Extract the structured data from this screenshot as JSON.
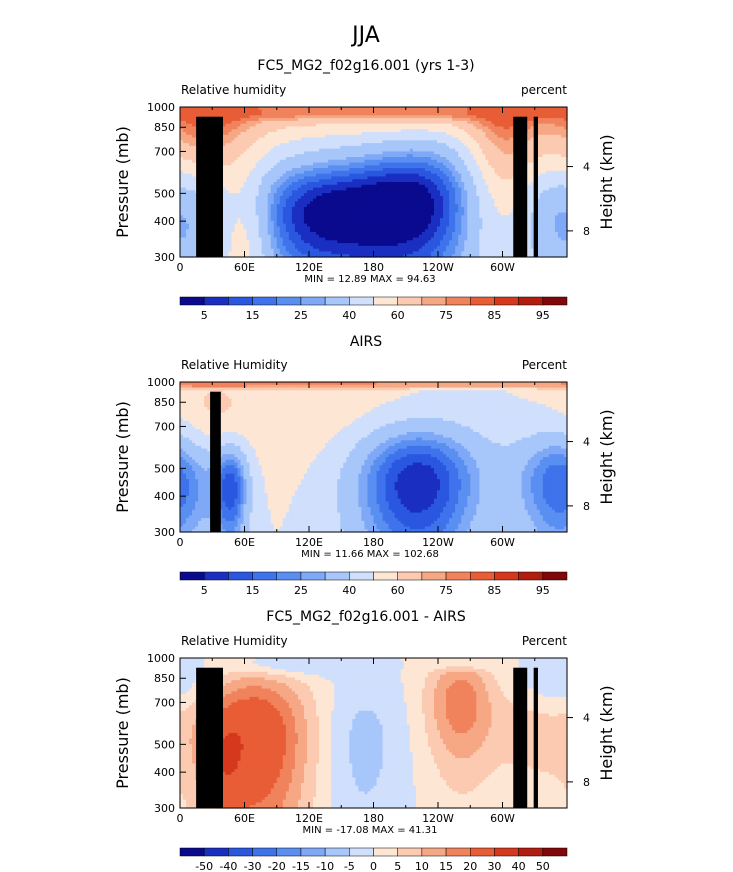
{
  "supertitle": "JJA",
  "chart_data": [
    {
      "type": "heatmap",
      "title": "FC5_MG2_f02g16.001 (yrs 1-3)",
      "left_label": "Relative humidity",
      "right_label": "percent",
      "ylabel": "Pressure (mb)",
      "ylabel_right": "Height (km)",
      "x_ticks": [
        "0",
        "60E",
        "120E",
        "180",
        "120W",
        "60W"
      ],
      "y_ticks": [
        "300",
        "400",
        "500",
        "700",
        "850",
        "1000"
      ],
      "y_right_ticks": [
        "8",
        "4"
      ],
      "ylim": [
        1000,
        300
      ],
      "min_max_label": "MIN =   12.89   MAX =   94.63",
      "min": 12.89,
      "max": 94.63,
      "colorbar_labels": [
        "5",
        "15",
        "25",
        "40",
        "60",
        "75",
        "85",
        "95"
      ],
      "levels": [
        0,
        5,
        10,
        15,
        20,
        25,
        30,
        40,
        50,
        60,
        70,
        75,
        80,
        85,
        90,
        95,
        100
      ],
      "blobs": [
        {
          "lon": 130,
          "p": 420,
          "sx": 55,
          "sp": 160,
          "v": -45
        },
        {
          "lon": 225,
          "p": 460,
          "sx": 45,
          "sp": 200,
          "v": -40
        },
        {
          "lon": 355,
          "p": 420,
          "sx": 35,
          "sp": 160,
          "v": -25
        },
        {
          "lon": 25,
          "p": 800,
          "sx": 35,
          "sp": 260,
          "v": 25
        },
        {
          "lon": 60,
          "p": 350,
          "sx": 18,
          "sp": 150,
          "v": 20
        },
        {
          "lon": 300,
          "p": 700,
          "sx": 25,
          "sp": 320,
          "v": 25
        },
        {
          "lon": 180,
          "p": 960,
          "sx": 200,
          "sp": 100,
          "v": 18
        }
      ],
      "base": 50,
      "surface": {
        "v": 85,
        "p0": 880,
        "sp": 60
      },
      "terrain": [
        [
          15,
          40,
          925
        ],
        [
          25,
          30,
          860
        ],
        [
          310,
          323,
          925
        ],
        [
          329,
          333,
          925
        ]
      ]
    },
    {
      "type": "heatmap",
      "title": "AIRS",
      "left_label": "Relative Humidity",
      "right_label": "Percent",
      "ylabel": "Pressure (mb)",
      "ylabel_right": "Height (km)",
      "x_ticks": [
        "0",
        "60E",
        "120E",
        "180",
        "120W",
        "60W"
      ],
      "y_ticks": [
        "300",
        "400",
        "500",
        "700",
        "850",
        "1000"
      ],
      "y_right_ticks": [
        "8",
        "4"
      ],
      "ylim": [
        1000,
        300
      ],
      "min_max_label": "MIN =   11.66   MAX =  102.68",
      "min": 11.66,
      "max": 102.68,
      "colorbar_labels": [
        "5",
        "15",
        "25",
        "40",
        "60",
        "75",
        "85",
        "95"
      ],
      "levels": [
        0,
        5,
        10,
        15,
        20,
        25,
        30,
        40,
        50,
        60,
        70,
        75,
        80,
        85,
        90,
        95,
        100
      ],
      "blobs": [
        {
          "lon": 48,
          "p": 430,
          "sx": 12,
          "sp": 130,
          "v": -35
        },
        {
          "lon": 220,
          "p": 440,
          "sx": 45,
          "sp": 190,
          "v": -45
        },
        {
          "lon": 355,
          "p": 440,
          "sx": 30,
          "sp": 160,
          "v": -35
        },
        {
          "lon": 110,
          "p": 780,
          "sx": 70,
          "sp": 220,
          "v": 8
        },
        {
          "lon": 30,
          "p": 800,
          "sx": 20,
          "sp": 240,
          "v": 8
        }
      ],
      "base": 50,
      "surface": {
        "v": 90,
        "p0": 930,
        "sp": 40
      },
      "terrain": [
        [
          28,
          38,
          925
        ]
      ]
    },
    {
      "type": "heatmap",
      "title": "FC5_MG2_f02g16.001 - AIRS",
      "left_label": "Relative Humidity",
      "right_label": "Percent",
      "ylabel": "Pressure (mb)",
      "ylabel_right": "Height (km)",
      "x_ticks": [
        "0",
        "60E",
        "120E",
        "180",
        "120W",
        "60W"
      ],
      "y_ticks": [
        "300",
        "400",
        "500",
        "700",
        "850",
        "1000"
      ],
      "y_right_ticks": [
        "8",
        "4"
      ],
      "ylim": [
        1000,
        300
      ],
      "min_max_label": "MIN =  -17.08   MAX =   41.31",
      "min": -17.08,
      "max": 41.31,
      "colorbar_labels": [
        "-50",
        "-40",
        "-30",
        "-20",
        "-15",
        "-10",
        "-5",
        "0",
        "5",
        "10",
        "15",
        "20",
        "30",
        "40",
        "50"
      ],
      "levels": [
        -60,
        -50,
        -40,
        -30,
        -20,
        -15,
        -10,
        -5,
        0,
        5,
        10,
        15,
        20,
        30,
        40,
        50,
        60
      ],
      "blobs": [
        {
          "lon": 70,
          "p": 520,
          "sx": 35,
          "sp": 250,
          "v": 28
        },
        {
          "lon": 40,
          "p": 420,
          "sx": 12,
          "sp": 150,
          "v": 12
        },
        {
          "lon": 260,
          "p": 700,
          "sx": 22,
          "sp": 220,
          "v": 18
        },
        {
          "lon": 330,
          "p": 560,
          "sx": 35,
          "sp": 160,
          "v": 7
        },
        {
          "lon": 170,
          "p": 500,
          "sx": 25,
          "sp": 220,
          "v": -7
        },
        {
          "lon": 355,
          "p": 800,
          "sx": 25,
          "sp": 120,
          "v": -6
        },
        {
          "lon": 100,
          "p": 950,
          "sx": 40,
          "sp": 60,
          "v": -8
        }
      ],
      "base": 0,
      "surface": {
        "v": 0,
        "p0": 880,
        "sp": 60
      },
      "terrain": [
        [
          15,
          40,
          925
        ],
        [
          25,
          30,
          860
        ],
        [
          310,
          323,
          925
        ],
        [
          329,
          333,
          925
        ]
      ]
    }
  ]
}
